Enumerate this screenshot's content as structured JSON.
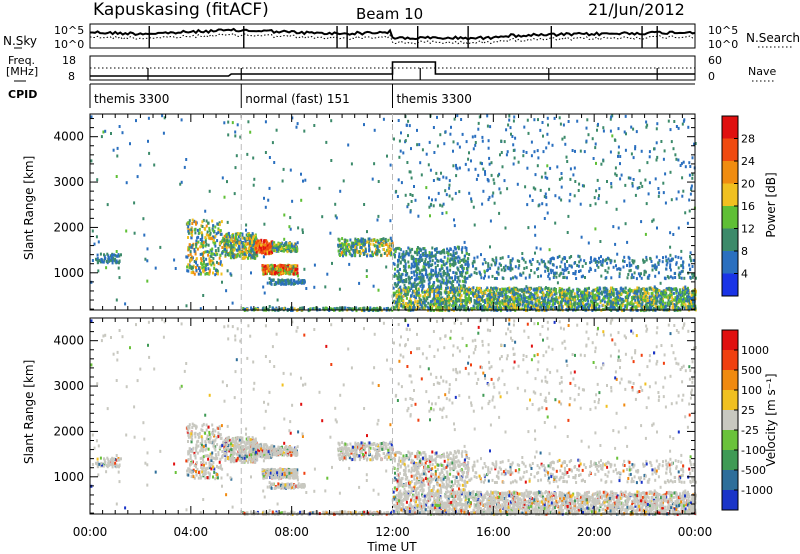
{
  "header": {
    "station": "Kapuskasing (fitACF)",
    "beam": "Beam 10",
    "date": "21/Jun/2012"
  },
  "left_labels": {
    "nsky": "N.Sky",
    "freq": "Freq.",
    "freq_unit": "[MHz]",
    "cpid": "CPID"
  },
  "right_labels": {
    "nsearch": "N.Search",
    "nave": "Nave"
  },
  "noise_axes": {
    "left_ticks": [
      "10^5",
      "10^0"
    ],
    "right_ticks": [
      "10^5",
      "10^0"
    ]
  },
  "freq_axes": {
    "left_ticks": [
      "18",
      "8"
    ],
    "right_ticks": [
      "60",
      "0"
    ]
  },
  "cpid_segments": [
    {
      "label": "themis 3300",
      "start_h": 0,
      "end_h": 6
    },
    {
      "label": "normal (fast) 151",
      "start_h": 6,
      "end_h": 12
    },
    {
      "label": "themis 3300",
      "start_h": 12,
      "end_h": 24
    }
  ],
  "x_axis": {
    "label": "Time UT",
    "ticks": [
      "00:00",
      "04:00",
      "08:00",
      "12:00",
      "16:00",
      "20:00",
      "00:00"
    ]
  },
  "y_axis": {
    "label": "Slant Range [km]",
    "ticks": [
      "1000",
      "2000",
      "3000",
      "4000"
    ]
  },
  "power_colorbar": {
    "label": "Power [dB]",
    "ticks": [
      "4",
      "8",
      "12",
      "16",
      "20",
      "24",
      "28"
    ],
    "colors": [
      "#1a34e6",
      "#2a6fbf",
      "#3c8a6a",
      "#5fbf35",
      "#f0c020",
      "#f08c10",
      "#f04a10",
      "#e01010"
    ]
  },
  "velocity_colorbar": {
    "label": "Velocity [m s⁻¹]",
    "ticks": [
      "1000",
      "500",
      "100",
      "25",
      "-25",
      "-100",
      "-500",
      "-1000"
    ],
    "colors": [
      "#1a34c8",
      "#2e6e9a",
      "#3f9a55",
      "#6ac23a",
      "#c8c8c0",
      "#f0c020",
      "#f08a10",
      "#f04010",
      "#e01010"
    ]
  },
  "chart_data": [
    {
      "type": "line",
      "title": "",
      "series": [
        {
          "name": "N.Sky"
        },
        {
          "name": "N.Search"
        }
      ]
    },
    {
      "type": "line",
      "series": [
        {
          "name": "Freq."
        },
        {
          "name": "Nave"
        }
      ],
      "ylim": [
        8,
        18
      ],
      "y2lim": [
        0,
        60
      ]
    },
    {
      "type": "heatmap",
      "panel": "power",
      "xlim": [
        0,
        24
      ],
      "ylim": [
        180,
        4500
      ],
      "xlabel": "",
      "ylabel": "Slant Range [km]",
      "colorbar": "Power [dB]",
      "clim": [
        0,
        30
      ]
    },
    {
      "type": "heatmap",
      "panel": "velocity",
      "xlim": [
        0,
        24
      ],
      "ylim": [
        180,
        4500
      ],
      "xlabel": "Time UT",
      "ylabel": "Slant Range [km]",
      "colorbar": "Velocity [m s-1]",
      "clim": [
        -1000,
        1000
      ]
    }
  ]
}
